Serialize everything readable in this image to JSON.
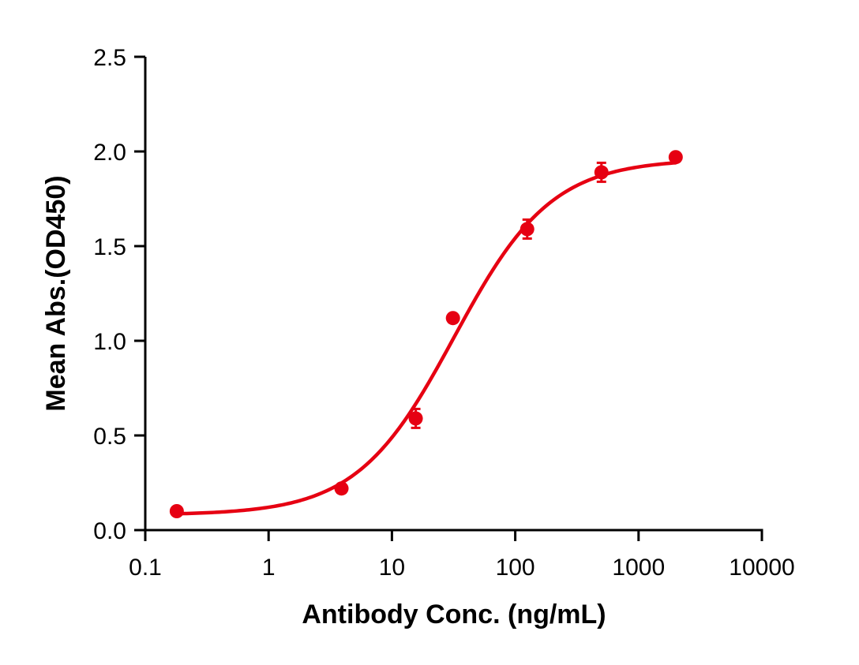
{
  "chart_data": {
    "type": "line",
    "title": "",
    "xlabel": "Antibody Conc. (ng/mL)",
    "ylabel": "Mean Abs.(OD450)",
    "xscale": "log",
    "xlim": [
      0.1,
      10000
    ],
    "ylim": [
      0,
      2.5
    ],
    "x_ticks": [
      "0.1",
      "1",
      "10",
      "100",
      "1000",
      "10000"
    ],
    "y_ticks": [
      "0.0",
      "0.5",
      "1.0",
      "1.5",
      "2.0",
      "2.5"
    ],
    "grid": false,
    "legend": null,
    "series": [
      {
        "name": "Mean Abs.(OD450)",
        "color": "#e60012",
        "marker": "circle",
        "fit": "4PL sigmoidal",
        "x": [
          0.18,
          3.9,
          15.6,
          31.25,
          125,
          500,
          2000
        ],
        "y": [
          0.1,
          0.22,
          0.59,
          1.12,
          1.59,
          1.89,
          1.97
        ],
        "error": [
          0.0,
          0.01,
          0.05,
          0.01,
          0.05,
          0.05,
          0.01
        ]
      }
    ],
    "fit_params": {
      "bottom": 0.08,
      "top": 1.96,
      "ec50": 32,
      "hill": 1.1
    }
  }
}
